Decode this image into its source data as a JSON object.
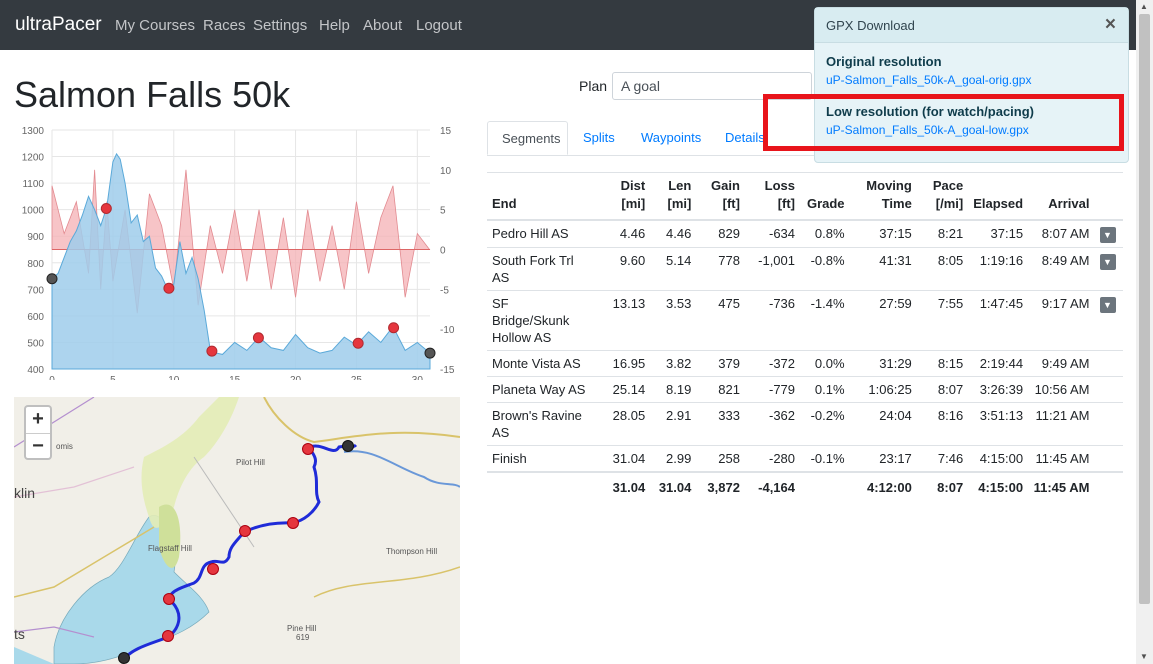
{
  "nav": {
    "brand": "ultraPacer",
    "links": [
      "My Courses",
      "Races",
      "Settings",
      "Help",
      "About",
      "Logout"
    ]
  },
  "title": "Salmon Falls 50k",
  "plan": {
    "label": "Plan",
    "value": "A goal"
  },
  "tabs": [
    "Segments",
    "Splits",
    "Waypoints",
    "Details"
  ],
  "table": {
    "headers": {
      "end": "End",
      "dist": [
        "Dist",
        "[mi]"
      ],
      "len": [
        "Len",
        "[mi]"
      ],
      "gain": [
        "Gain",
        "[ft]"
      ],
      "loss": [
        "Loss",
        "[ft]"
      ],
      "grade": "Grade",
      "moving": [
        "Moving",
        "Time"
      ],
      "pace": [
        "Pace",
        "[/mi]"
      ],
      "elapsed": "Elapsed",
      "arrival": "Arrival"
    },
    "rows": [
      {
        "end": "Pedro Hill AS",
        "dist": "4.46",
        "len": "4.46",
        "gain": "829",
        "loss": "-634",
        "grade": "0.8%",
        "moving": "37:15",
        "pace": "8:21",
        "elapsed": "37:15",
        "arrival": "8:07 AM",
        "caret": true
      },
      {
        "end": "South Fork Trl AS",
        "dist": "9.60",
        "len": "5.14",
        "gain": "778",
        "loss": "-1,001",
        "grade": "-0.8%",
        "moving": "41:31",
        "pace": "8:05",
        "elapsed": "1:19:16",
        "arrival": "8:49 AM",
        "caret": true
      },
      {
        "end": "SF Bridge/Skunk Hollow AS",
        "dist": "13.13",
        "len": "3.53",
        "gain": "475",
        "loss": "-736",
        "grade": "-1.4%",
        "moving": "27:59",
        "pace": "7:55",
        "elapsed": "1:47:45",
        "arrival": "9:17 AM",
        "caret": true
      },
      {
        "end": "Monte Vista AS",
        "dist": "16.95",
        "len": "3.82",
        "gain": "379",
        "loss": "-372",
        "grade": "0.0%",
        "moving": "31:29",
        "pace": "8:15",
        "elapsed": "2:19:44",
        "arrival": "9:49 AM",
        "caret": false
      },
      {
        "end": "Planeta Way AS",
        "dist": "25.14",
        "len": "8.19",
        "gain": "821",
        "loss": "-779",
        "grade": "0.1%",
        "moving": "1:06:25",
        "pace": "8:07",
        "elapsed": "3:26:39",
        "arrival": "10:56 AM",
        "caret": false
      },
      {
        "end": "Brown's Ravine AS",
        "dist": "28.05",
        "len": "2.91",
        "gain": "333",
        "loss": "-362",
        "grade": "-0.2%",
        "moving": "24:04",
        "pace": "8:16",
        "elapsed": "3:51:13",
        "arrival": "11:21 AM",
        "caret": false
      },
      {
        "end": "Finish",
        "dist": "31.04",
        "len": "2.99",
        "gain": "258",
        "loss": "-280",
        "grade": "-0.1%",
        "moving": "23:17",
        "pace": "7:46",
        "elapsed": "4:15:00",
        "arrival": "11:45 AM",
        "caret": false
      }
    ],
    "totals": {
      "dist": "31.04",
      "len": "31.04",
      "gain": "3,872",
      "loss": "-4,164",
      "moving": "4:12:00",
      "pace": "8:07",
      "elapsed": "4:15:00",
      "arrival": "11:45 AM"
    }
  },
  "popover": {
    "title": "GPX Download",
    "close": "×",
    "original_heading": "Original resolution",
    "original_link": "uP-Salmon_Falls_50k-A_goal-orig.gpx",
    "low_heading": "Low resolution (for watch/pacing)",
    "low_link": "uP-Salmon_Falls_50k-A_goal-low.gpx"
  },
  "map": {
    "zoom_in": "+",
    "zoom_out": "−",
    "labels": [
      "Pilot Hill",
      "Flagstaff Hill",
      "Thompson Hill",
      "Pine Hill",
      "619",
      "klin",
      "omis",
      "ts"
    ]
  },
  "chart_data": {
    "type": "area",
    "x_ticks": [
      0,
      5,
      10,
      15,
      20,
      25,
      30
    ],
    "y_left_ticks": [
      400,
      500,
      600,
      700,
      800,
      900,
      1000,
      1100,
      1200,
      1300
    ],
    "y_right_ticks": [
      15,
      10,
      5,
      0,
      -5,
      -10,
      -15
    ],
    "xlim": [
      0,
      31.04
    ],
    "ylim_left": [
      400,
      1300
    ],
    "ylim_right": [
      -15,
      15
    ],
    "elevation": {
      "x": [
        0,
        0.5,
        1,
        1.5,
        2,
        2.5,
        3,
        3.5,
        4,
        4.5,
        5,
        5.3,
        5.6,
        6,
        6.5,
        7,
        7.5,
        8,
        8.5,
        9,
        9.5,
        10,
        10.5,
        11,
        11.5,
        12,
        12.5,
        13,
        13.5,
        14,
        15,
        16,
        17,
        18,
        19,
        20,
        21,
        22,
        23,
        24,
        25,
        26,
        27,
        28,
        29,
        30,
        31.04
      ],
      "y": [
        740,
        760,
        820,
        880,
        920,
        980,
        1050,
        1000,
        940,
        1010,
        1180,
        1210,
        1190,
        1100,
        950,
        980,
        880,
        900,
        780,
        750,
        700,
        720,
        880,
        760,
        820,
        740,
        620,
        470,
        460,
        455,
        500,
        470,
        520,
        480,
        470,
        530,
        480,
        460,
        470,
        520,
        490,
        540,
        500,
        560,
        470,
        500,
        460
      ]
    },
    "grade": {
      "x": [
        0,
        1,
        2,
        3,
        3.5,
        4,
        4.5,
        5,
        6,
        7,
        8,
        9,
        10,
        11,
        12,
        13,
        14,
        15,
        16,
        17,
        18,
        19,
        20,
        21,
        22,
        23,
        24,
        25,
        26,
        27,
        28,
        29,
        30,
        31
      ],
      "y": [
        8,
        2,
        6,
        -3,
        10,
        -5,
        6,
        -4,
        5,
        -8,
        7,
        3,
        -5,
        10,
        -7,
        3,
        -3,
        5,
        -4,
        5,
        -5,
        4,
        -6,
        5,
        -4,
        3,
        -5,
        6,
        -3,
        4,
        8,
        -6,
        2,
        0
      ]
    },
    "aid_stations_x": [
      4.46,
      9.6,
      13.13,
      16.95,
      25.14,
      28.05
    ],
    "start_finish_x": [
      0,
      31.04
    ]
  },
  "colors": {
    "navbar": "#343a40",
    "elevation_fill": "#9fcdeb",
    "grade_fill": "#f4b0b4",
    "aid_station": "#e5363e",
    "route": "#1f2bd8",
    "highlight": "#e8141b"
  }
}
